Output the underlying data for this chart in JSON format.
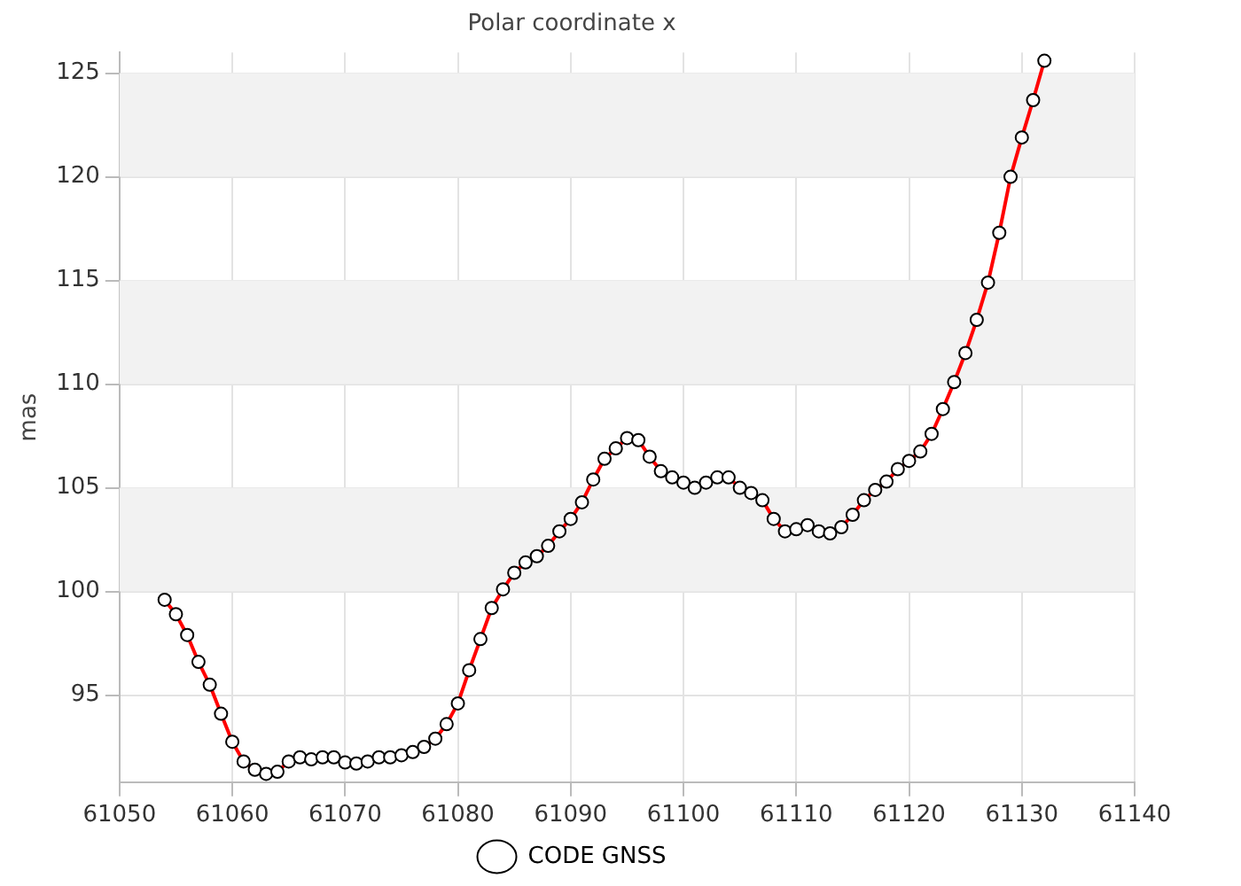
{
  "chart_data": {
    "type": "line",
    "title": "Polar coordinate x",
    "ylabel": "mas",
    "x": [
      61054,
      61055,
      61056,
      61057,
      61058,
      61059,
      61060,
      61061,
      61062,
      61063,
      61064,
      61065,
      61066,
      61067,
      61068,
      61069,
      61070,
      61071,
      61072,
      61073,
      61074,
      61075,
      61076,
      61077,
      61078,
      61079,
      61080,
      61081,
      61082,
      61083,
      61084,
      61085,
      61086,
      61087,
      61088,
      61089,
      61090,
      61091,
      61092,
      61093,
      61094,
      61095,
      61096,
      61097,
      61098,
      61099,
      61100,
      61101,
      61102,
      61103,
      61104,
      61105,
      61106,
      61107,
      61108,
      61109,
      61110,
      61111,
      61112,
      61113,
      61114,
      61115,
      61116,
      61117,
      61118,
      61119,
      61120,
      61121,
      61122,
      61123,
      61124,
      61125,
      61126,
      61127,
      61128,
      61129,
      61130,
      61131,
      61132
    ],
    "series": [
      {
        "name": "CODE GNSS",
        "color": "#ff0000",
        "values": [
          99.6,
          98.9,
          97.9,
          96.6,
          95.5,
          94.1,
          92.75,
          91.8,
          91.4,
          91.2,
          91.3,
          91.8,
          92.0,
          91.9,
          92.0,
          92.0,
          91.75,
          91.7,
          91.8,
          92.0,
          92.0,
          92.1,
          92.25,
          92.5,
          92.9,
          93.6,
          94.6,
          96.2,
          97.7,
          99.2,
          100.1,
          100.9,
          101.4,
          101.7,
          102.2,
          102.9,
          103.5,
          104.3,
          105.4,
          106.4,
          106.9,
          107.4,
          107.3,
          106.5,
          105.8,
          105.5,
          105.25,
          105.0,
          105.25,
          105.5,
          105.5,
          105.0,
          104.75,
          104.4,
          103.5,
          102.9,
          103.0,
          103.2,
          102.9,
          102.8,
          103.1,
          103.7,
          104.4,
          104.9,
          105.3,
          105.9,
          106.3,
          106.75,
          107.6,
          108.8,
          110.1,
          111.5,
          113.1,
          114.9,
          117.3,
          120.0,
          121.9,
          123.7,
          125.6
        ]
      }
    ],
    "xlim": [
      61050,
      61140
    ],
    "xticks": [
      61050,
      61060,
      61070,
      61080,
      61090,
      61100,
      61110,
      61120,
      61130,
      61140
    ],
    "ylim": [
      90.8,
      126
    ],
    "yticks": [
      95,
      100,
      105,
      110,
      115,
      120,
      125
    ],
    "bands": [
      {
        "axis": "y",
        "from": 100,
        "to": 105,
        "color": "#f2f2f2"
      },
      {
        "axis": "y",
        "from": 110,
        "to": 115,
        "color": "#f2f2f2"
      },
      {
        "axis": "y",
        "from": 120,
        "to": 125,
        "color": "#f2f2f2"
      }
    ],
    "grid": true,
    "legend": "bottom",
    "marker": "circle",
    "line_style": "solid"
  }
}
